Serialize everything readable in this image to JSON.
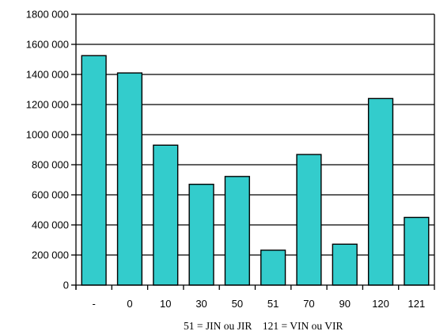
{
  "chart_data": {
    "type": "bar",
    "categories": [
      "-",
      "0",
      "10",
      "30",
      "50",
      "51",
      "70",
      "90",
      "120",
      "121"
    ],
    "values": [
      1525000,
      1410000,
      930000,
      670000,
      722000,
      232000,
      868000,
      272000,
      1240000,
      450000
    ],
    "ylim": [
      0,
      1800000
    ],
    "yticks": [
      0,
      200000,
      400000,
      600000,
      800000,
      1000000,
      1200000,
      1400000,
      1600000,
      1800000
    ],
    "ytick_labels": [
      "0",
      "200 000",
      "400 000",
      "600 000",
      "800 000",
      "1000 000",
      "1200 000",
      "1400 000",
      "1600 000",
      "1800 000"
    ],
    "grid": true,
    "bar_color": "#33cccc",
    "annotation": "51 = JIN ou JIR    121 = VIN ou VIR"
  }
}
